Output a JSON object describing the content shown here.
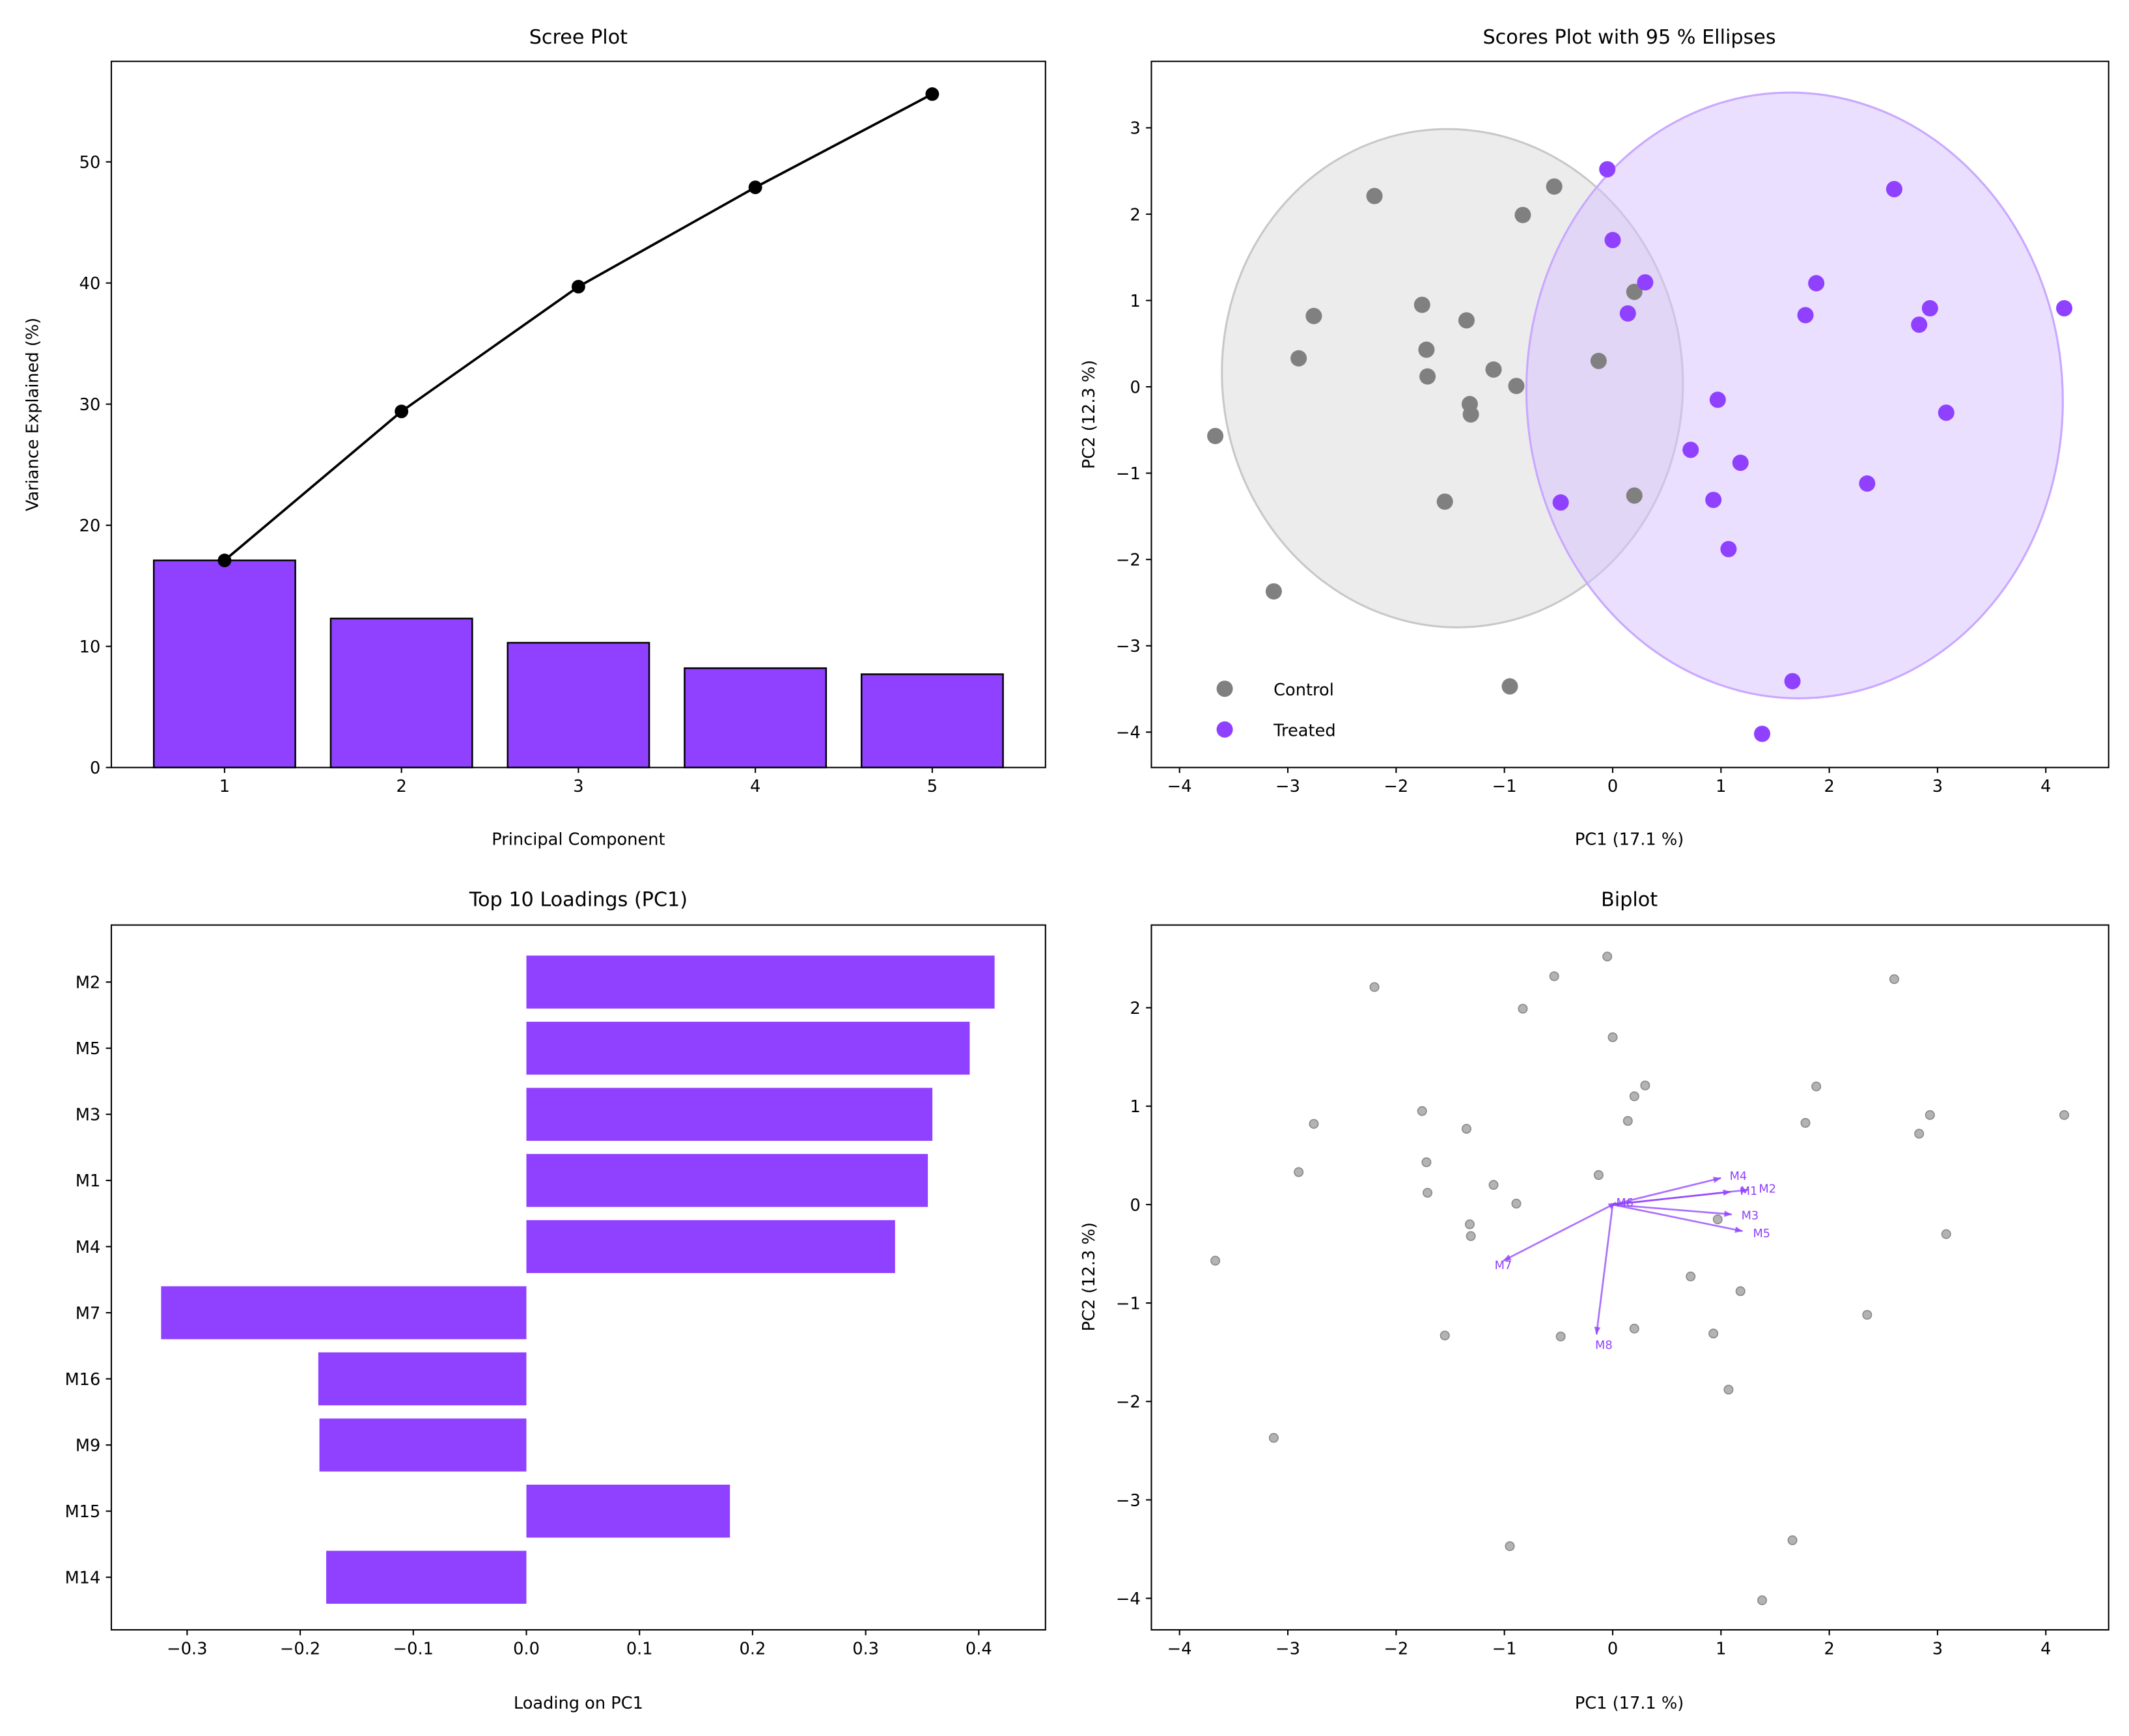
{
  "chart_data": [
    {
      "type": "bar",
      "title": "Scree Plot",
      "xlabel": "Principal Component",
      "ylabel": "Variance Explained (%)",
      "categories": [
        1,
        2,
        3,
        4,
        5
      ],
      "values": [
        17.1,
        12.3,
        10.3,
        8.2,
        7.7
      ],
      "cumulative_line": [
        17.1,
        29.4,
        39.7,
        47.9,
        55.6
      ],
      "xticks": [
        "1",
        "2",
        "3",
        "4",
        "5"
      ],
      "yticks": [
        0,
        10,
        20,
        30,
        40,
        50
      ],
      "xlim": [
        0.36,
        5.64
      ],
      "ylim": [
        0,
        58.3
      ],
      "bar_color": "#9040ff",
      "line_color": "#000000",
      "grid": false
    },
    {
      "type": "scatter",
      "title": "Scores Plot with 95 % Ellipses",
      "xlabel": "PC1 (17.1 %)",
      "ylabel": "PC2 (12.3 %)",
      "xlim": [
        -4.26,
        4.58
      ],
      "ylim": [
        -4.41,
        3.77
      ],
      "xticks": [
        -4,
        -3,
        -2,
        -1,
        0,
        1,
        2,
        3,
        4
      ],
      "yticks": [
        -4,
        -3,
        -2,
        -1,
        0,
        1,
        2,
        3
      ],
      "legend_position": "lower-left",
      "grid": false,
      "series": [
        {
          "name": "Control",
          "color": "#808080",
          "points": [
            [
              -3.67,
              -0.57
            ],
            [
              -3.13,
              -2.37
            ],
            [
              -2.9,
              0.33
            ],
            [
              -2.76,
              0.82
            ],
            [
              -2.2,
              2.21
            ],
            [
              -1.76,
              0.95
            ],
            [
              -1.72,
              0.43
            ],
            [
              -1.71,
              0.12
            ],
            [
              -1.35,
              0.77
            ],
            [
              -1.32,
              -0.2
            ],
            [
              -1.31,
              -0.32
            ],
            [
              -1.1,
              0.2
            ],
            [
              -0.95,
              -3.47
            ],
            [
              -0.89,
              0.01
            ],
            [
              -0.83,
              1.99
            ],
            [
              -0.54,
              2.32
            ],
            [
              -0.13,
              0.3
            ],
            [
              0.2,
              1.1
            ],
            [
              0.2,
              -1.26
            ],
            [
              -1.55,
              -1.33
            ]
          ],
          "ellipse": {
            "center": [
              -1.48,
              0.1
            ],
            "width": 4.25,
            "height": 5.78,
            "angle_deg": -8,
            "fill": "#d9d9d9"
          }
        },
        {
          "name": "Treated",
          "color": "#9040ff",
          "points": [
            [
              -0.05,
              2.52
            ],
            [
              0.0,
              1.7
            ],
            [
              0.3,
              1.21
            ],
            [
              0.14,
              0.85
            ],
            [
              -0.48,
              -1.34
            ],
            [
              0.72,
              -0.73
            ],
            [
              0.97,
              -0.15
            ],
            [
              0.93,
              -1.31
            ],
            [
              1.18,
              -0.88
            ],
            [
              1.07,
              -1.88
            ],
            [
              1.38,
              -4.02
            ],
            [
              1.66,
              -3.41
            ],
            [
              1.78,
              0.83
            ],
            [
              1.88,
              1.2
            ],
            [
              2.35,
              -1.12
            ],
            [
              2.6,
              2.29
            ],
            [
              2.83,
              0.72
            ],
            [
              2.93,
              0.91
            ],
            [
              3.08,
              -0.3
            ],
            [
              4.17,
              0.91
            ]
          ],
          "ellipse": {
            "center": [
              1.68,
              -0.1
            ],
            "width": 4.95,
            "height": 7.02,
            "angle_deg": -4,
            "fill": "#d8bfff"
          }
        }
      ]
    },
    {
      "type": "bar",
      "orientation": "horizontal",
      "title": "Top 10 Loadings (PC1)",
      "xlabel": "Loading on PC1",
      "ylabel": "",
      "categories": [
        "M2",
        "M5",
        "M3",
        "M1",
        "M4",
        "M7",
        "M16",
        "M9",
        "M15",
        "M14"
      ],
      "values": [
        0.414,
        0.392,
        0.359,
        0.355,
        0.326,
        -0.323,
        -0.184,
        -0.183,
        0.18,
        -0.177
      ],
      "xticks": [
        "−0.3",
        "−0.2",
        "−0.1",
        "0.0",
        "0.1",
        "0.2",
        "0.3",
        "0.4"
      ],
      "xtick_values": [
        -0.3,
        -0.2,
        -0.1,
        0.0,
        0.1,
        0.2,
        0.3,
        0.4
      ],
      "xlim": [
        -0.367,
        0.459
      ],
      "bar_color": "#9040ff",
      "grid": false
    },
    {
      "type": "scatter",
      "title": "Biplot",
      "xlabel": "PC1 (17.1 %)",
      "ylabel": "PC2 (12.3 %)",
      "xlim": [
        -4.26,
        4.58
      ],
      "ylim": [
        -4.32,
        2.84
      ],
      "xticks": [
        -4,
        -3,
        -2,
        -1,
        0,
        1,
        2,
        3,
        4
      ],
      "yticks": [
        -4,
        -3,
        -2,
        -1,
        0,
        1,
        2
      ],
      "grid": false,
      "point_color": "#a0a0a0",
      "arrow_color": "#9040ff",
      "arrows": [
        {
          "name": "M4",
          "x": 1.0,
          "y": 0.27
        },
        {
          "name": "M1",
          "x": 1.09,
          "y": 0.13
        },
        {
          "name": "M2",
          "x": 1.25,
          "y": 0.15
        },
        {
          "name": "M3",
          "x": 1.1,
          "y": -0.1
        },
        {
          "name": "M5",
          "x": 1.2,
          "y": -0.27
        },
        {
          "name": "M6",
          "x": 0.03,
          "y": 0.02
        },
        {
          "name": "M7",
          "x": -1.01,
          "y": -0.57
        },
        {
          "name": "M8",
          "x": -0.15,
          "y": -1.32
        }
      ]
    }
  ]
}
